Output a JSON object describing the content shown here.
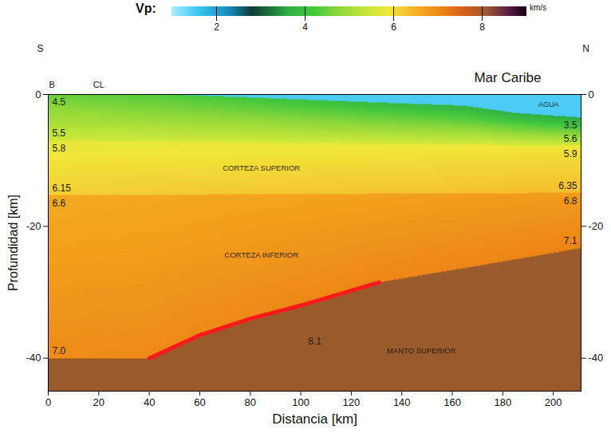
{
  "chart_data": {
    "type": "section",
    "x_label": "Distancia [km]",
    "y_label": "Profundidad [km]",
    "xlim": [
      0,
      211
    ],
    "xticks": [
      0,
      20,
      40,
      60,
      80,
      100,
      120,
      140,
      160,
      180,
      200
    ],
    "ylim": [
      -45,
      0
    ],
    "yticks": [
      -40,
      -20,
      0
    ],
    "direction_labels": [
      "S",
      "N"
    ],
    "region_label": "Mar Caribe",
    "sites": {
      "labels": [
        "B",
        "CL"
      ],
      "x": [
        1.5,
        20
      ]
    },
    "colorbar": {
      "label": "Vp:",
      "unit": "km/s",
      "range": [
        1,
        9
      ],
      "ticks": [
        2,
        4,
        6,
        8
      ]
    },
    "data_labels": true,
    "boundaries": [
      {
        "x": [
          0,
          211
        ],
        "depth": [
          0,
          0
        ]
      },
      {
        "x": [
          0,
          50,
          90,
          130,
          165,
          185,
          211
        ],
        "depth": [
          0,
          0,
          -0.6,
          -1.2,
          -1.7,
          -2.8,
          -3.5
        ]
      },
      {
        "x": [
          0,
          211
        ],
        "depth": [
          -7,
          -7.8
        ]
      },
      {
        "x": [
          0,
          211
        ],
        "depth": [
          -15.3,
          -14.9
        ]
      },
      {
        "x": [
          0,
          40,
          60,
          80,
          100,
          131,
          170,
          211
        ],
        "depth": [
          -40,
          -40,
          -36.5,
          -34,
          -32,
          -28.5,
          -26,
          -23.3
        ]
      }
    ],
    "layers": [
      {
        "name": "AGUA",
        "vp": 1.5,
        "data_labels": false
      },
      {
        "vp_left": [
          4.5,
          5.5
        ],
        "vp_right": [
          3.5,
          5.6
        ]
      },
      {
        "name": "CORTEZA SUPERIOR",
        "vp_left": [
          5.8,
          6.15
        ],
        "vp_right": [
          5.9,
          6.35
        ]
      },
      {
        "name": "CORTEZA INFERIOR",
        "vp_left": [
          6.6,
          7.0
        ],
        "vp_right": [
          6.8,
          7.1
        ],
        "vp_left_labels": [
          "6.6",
          "7.0"
        ]
      },
      {
        "name": "MANTO SUPERIOR",
        "vp": 8.1
      }
    ],
    "reflector": {
      "x": [
        40,
        60,
        80,
        100,
        131
      ],
      "depth": [
        -40,
        -36.5,
        -34,
        -32,
        -28.5
      ],
      "color": "#ff1a1a"
    }
  }
}
